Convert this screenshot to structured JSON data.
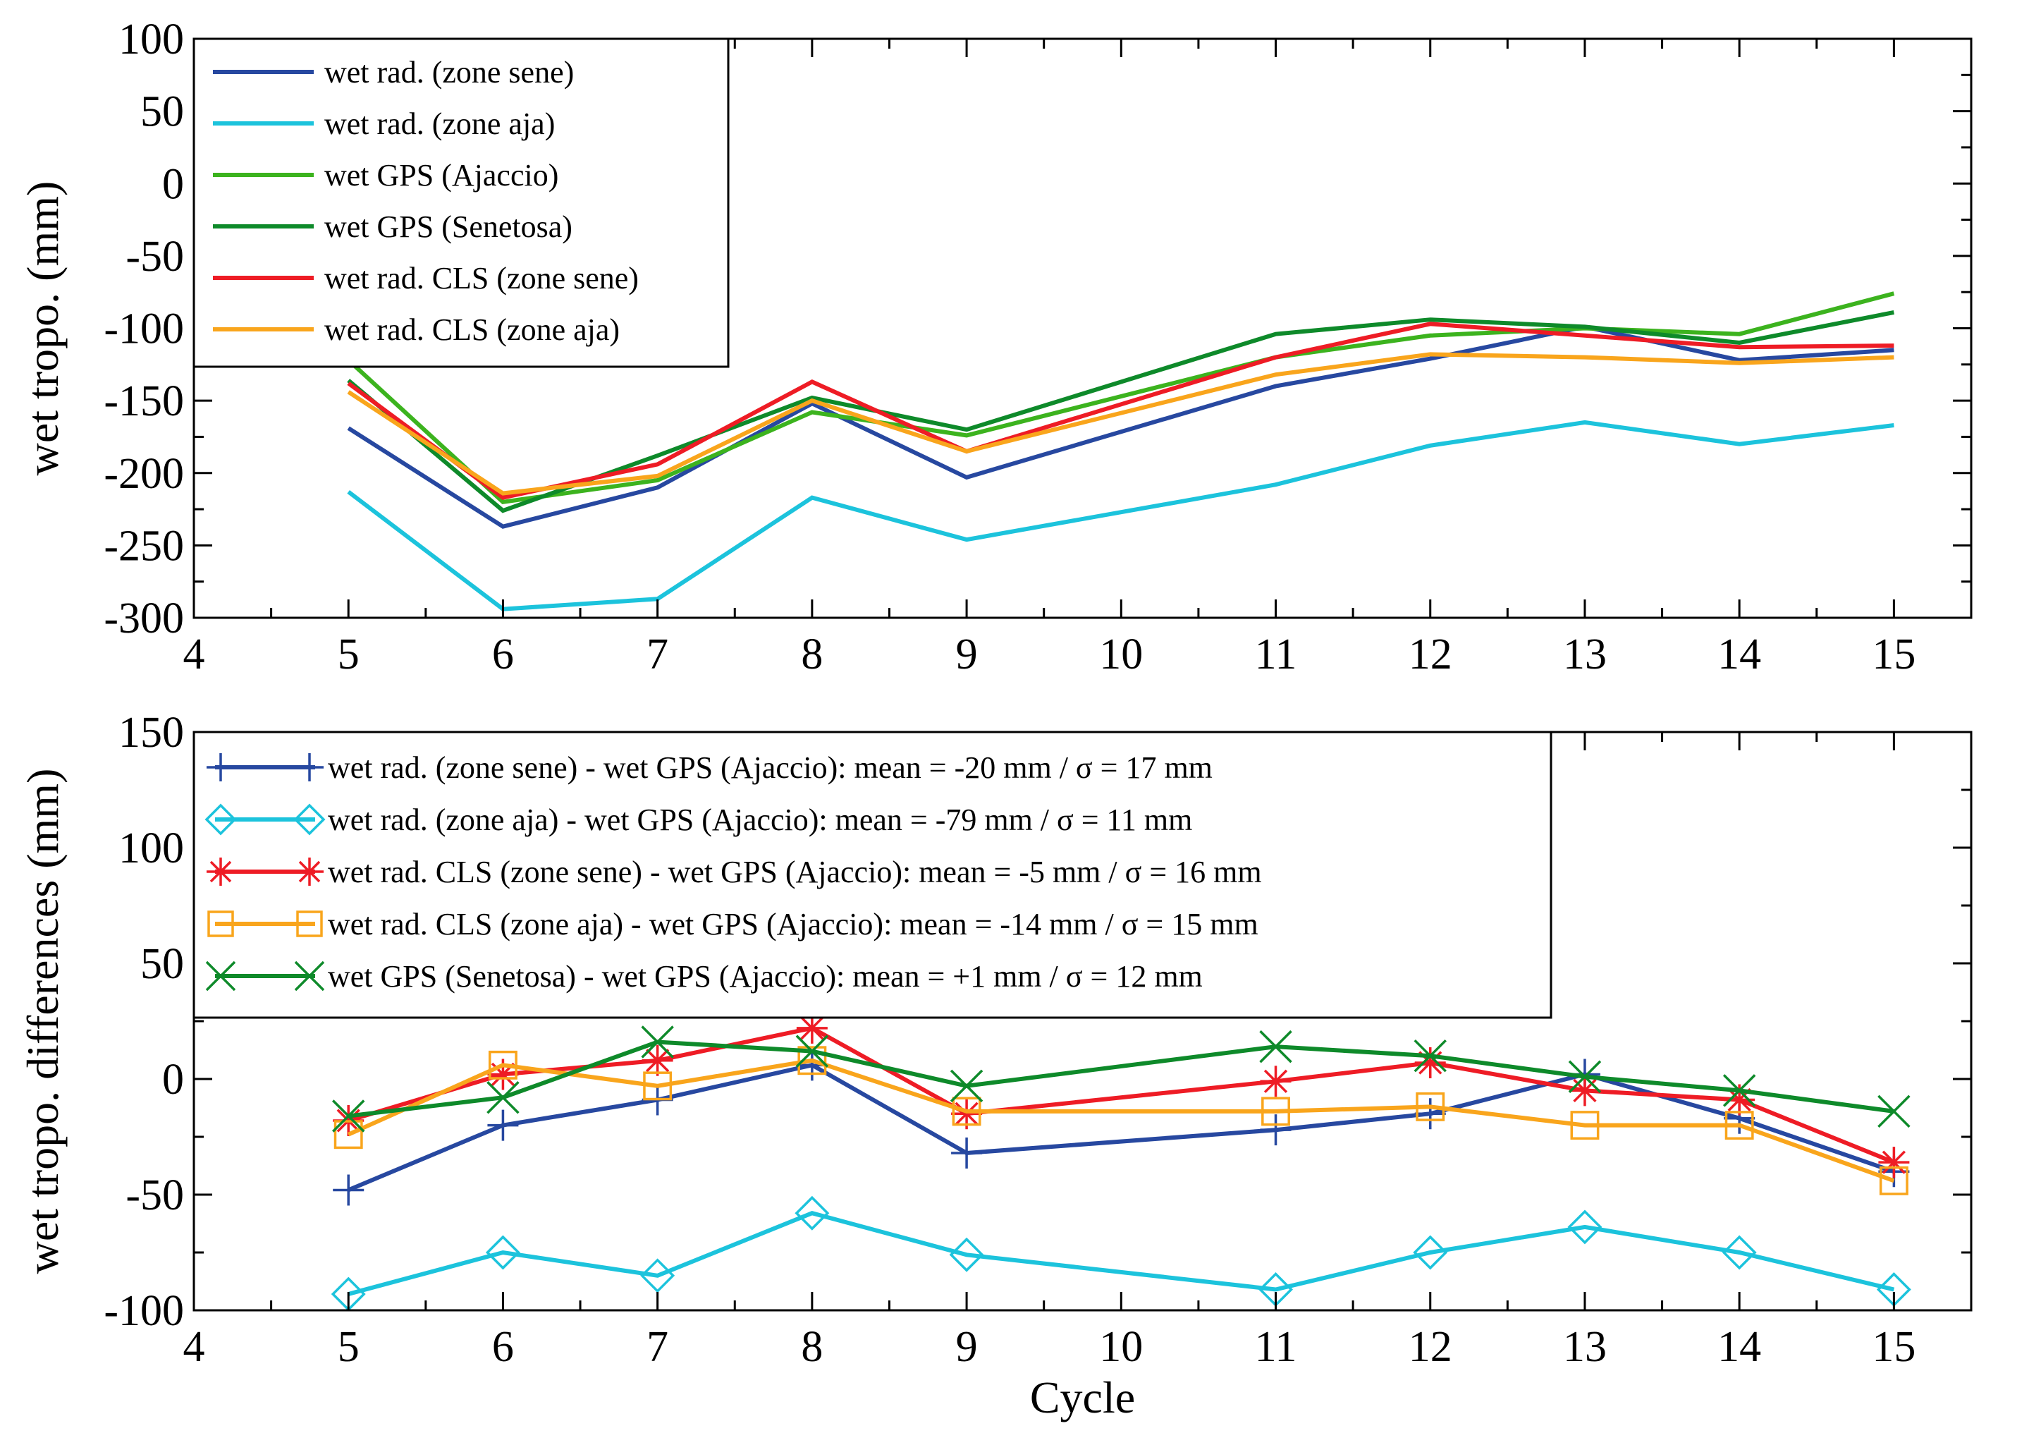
{
  "chart_data": [
    {
      "type": "line",
      "title": "",
      "xlabel": "",
      "ylabel": "wet tropo. (mm)",
      "xlim": [
        4,
        15.5
      ],
      "ylim": [
        -300,
        100
      ],
      "xticks": [
        4,
        5,
        6,
        7,
        8,
        9,
        10,
        11,
        12,
        13,
        14,
        15
      ],
      "yticks": [
        -300,
        -250,
        -200,
        -150,
        -100,
        -50,
        0,
        50,
        100
      ],
      "grid": false,
      "legend_position": "top-left",
      "x": [
        5,
        6,
        7,
        8,
        9,
        11,
        12,
        13,
        14,
        15
      ],
      "series": [
        {
          "name": "wet rad. (zone sene)",
          "color": "#2748a0",
          "marker": "none",
          "values": [
            -169,
            -237,
            -210,
            -152,
            -203,
            -140,
            -121,
            -99,
            -122,
            -115
          ]
        },
        {
          "name": "wet rad. (zone aja)",
          "color": "#1cc3dc",
          "marker": "none",
          "values": [
            -213,
            -294,
            -287,
            -217,
            -246,
            -208,
            -181,
            -165,
            -180,
            -167
          ]
        },
        {
          "name": "wet GPS (Ajaccio)",
          "color": "#3cb31e",
          "marker": "none",
          "values": [
            -122,
            -220,
            -205,
            -158,
            -174,
            -120,
            -105,
            -100,
            -104,
            -76
          ]
        },
        {
          "name": "wet GPS (Senetosa)",
          "color": "#0e8a2a",
          "marker": "none",
          "values": [
            -136,
            -226,
            -188,
            -148,
            -170,
            -104,
            -94,
            -99,
            -110,
            -89
          ]
        },
        {
          "name": "wet rad. CLS (zone sene)",
          "color": "#ee1c25",
          "marker": "none",
          "values": [
            -138,
            -217,
            -194,
            -137,
            -185,
            -120,
            -97,
            -105,
            -113,
            -112
          ]
        },
        {
          "name": "wet rad. CLS (zone aja)",
          "color": "#f9a51c",
          "marker": "none",
          "values": [
            -144,
            -214,
            -202,
            -150,
            -185,
            -132,
            -118,
            -120,
            -124,
            -120
          ]
        }
      ]
    },
    {
      "type": "line",
      "title": "",
      "xlabel": "Cycle",
      "ylabel": "wet tropo. differences (mm)",
      "xlim": [
        4,
        15.5
      ],
      "ylim": [
        -100,
        150
      ],
      "xticks": [
        4,
        5,
        6,
        7,
        8,
        9,
        10,
        11,
        12,
        13,
        14,
        15
      ],
      "yticks": [
        -100,
        -50,
        0,
        50,
        100,
        150
      ],
      "grid": false,
      "legend_position": "top-left",
      "x": [
        5,
        6,
        7,
        8,
        9,
        11,
        12,
        13,
        14,
        15
      ],
      "series": [
        {
          "name": "wet rad. (zone sene) - wet GPS (Ajaccio): mean = -20 mm / σ = 17 mm",
          "color": "#2748a0",
          "marker": "plus",
          "values": [
            -48,
            -20,
            -9,
            6,
            -32,
            -22,
            -15,
            2,
            -17,
            -40
          ]
        },
        {
          "name": "wet rad. (zone aja) - wet GPS (Ajaccio): mean = -79 mm / σ = 11 mm",
          "color": "#1cc3dc",
          "marker": "diamond",
          "values": [
            -93,
            -75,
            -85,
            -58,
            -76,
            -91,
            -75,
            -64,
            -75,
            -91
          ]
        },
        {
          "name": "wet rad. CLS (zone sene) - wet GPS (Ajaccio): mean = -5 mm / σ = 16 mm",
          "color": "#ee1c25",
          "marker": "star",
          "values": [
            -18,
            2,
            8,
            22,
            -15,
            -1,
            7,
            -5,
            -9,
            -36
          ]
        },
        {
          "name": "wet rad. CLS (zone aja) - wet GPS (Ajaccio): mean = -14 mm / σ = 15 mm",
          "color": "#f9a51c",
          "marker": "square",
          "values": [
            -24,
            6,
            -3,
            8,
            -14,
            -14,
            -12,
            -20,
            -20,
            -44
          ]
        },
        {
          "name": "wet GPS (Senetosa) - wet GPS (Ajaccio): mean = +1 mm / σ = 12 mm",
          "color": "#0e8a2a",
          "marker": "x",
          "values": [
            -16,
            -8,
            16,
            12,
            -3,
            14,
            10,
            1,
            -5,
            -14
          ]
        }
      ]
    }
  ]
}
